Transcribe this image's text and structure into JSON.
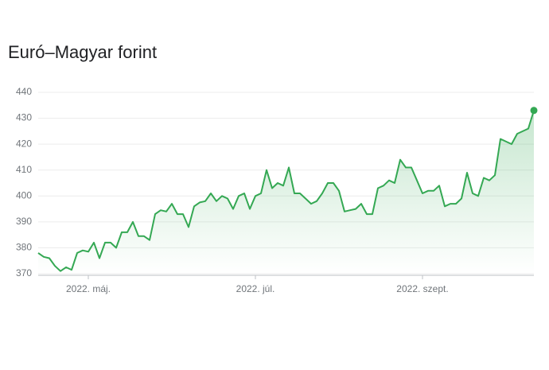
{
  "chart_data": {
    "type": "line",
    "title": "Euró–Magyar forint",
    "categories": [
      null,
      null,
      null,
      null,
      null,
      null,
      null,
      null,
      null,
      "2022. máj.",
      null,
      null,
      null,
      null,
      null,
      null,
      null,
      null,
      null,
      null,
      null,
      null,
      null,
      null,
      null,
      null,
      null,
      null,
      null,
      null,
      null,
      null,
      null,
      null,
      null,
      null,
      null,
      null,
      null,
      "2022. júl.",
      null,
      null,
      null,
      null,
      null,
      null,
      null,
      null,
      null,
      null,
      null,
      null,
      null,
      null,
      null,
      null,
      null,
      null,
      null,
      null,
      null,
      null,
      null,
      null,
      null,
      null,
      null,
      null,
      null,
      "2022. szept.",
      null,
      null,
      null,
      null,
      null,
      null,
      null,
      null,
      null,
      null,
      null,
      null,
      null,
      null,
      null,
      null,
      null,
      null,
      null,
      null
    ],
    "values": [
      378,
      376.5,
      376,
      373,
      371,
      372.5,
      371.5,
      378,
      379,
      378.5,
      382,
      376,
      382,
      382,
      380,
      386,
      386,
      390,
      384.5,
      384.5,
      383,
      393,
      394.5,
      394,
      397,
      393,
      393,
      388,
      396,
      397.5,
      398,
      401,
      398,
      400,
      399,
      395,
      400,
      401,
      395,
      400,
      401,
      410,
      403,
      405,
      404,
      411,
      401,
      401,
      399,
      397,
      398,
      401,
      405,
      405,
      402,
      394,
      394.5,
      395,
      397,
      393,
      393,
      403,
      404,
      406,
      405,
      414,
      411,
      411,
      406,
      401,
      402,
      402,
      404,
      396,
      397,
      397,
      399,
      409,
      401,
      400,
      407,
      406,
      408,
      422,
      421,
      420,
      424,
      425,
      426,
      433
    ],
    "color": "#34a853",
    "ylim": [
      370,
      440
    ],
    "yticks": [
      370,
      380,
      390,
      400,
      410,
      420,
      430,
      440
    ],
    "grid": true
  }
}
